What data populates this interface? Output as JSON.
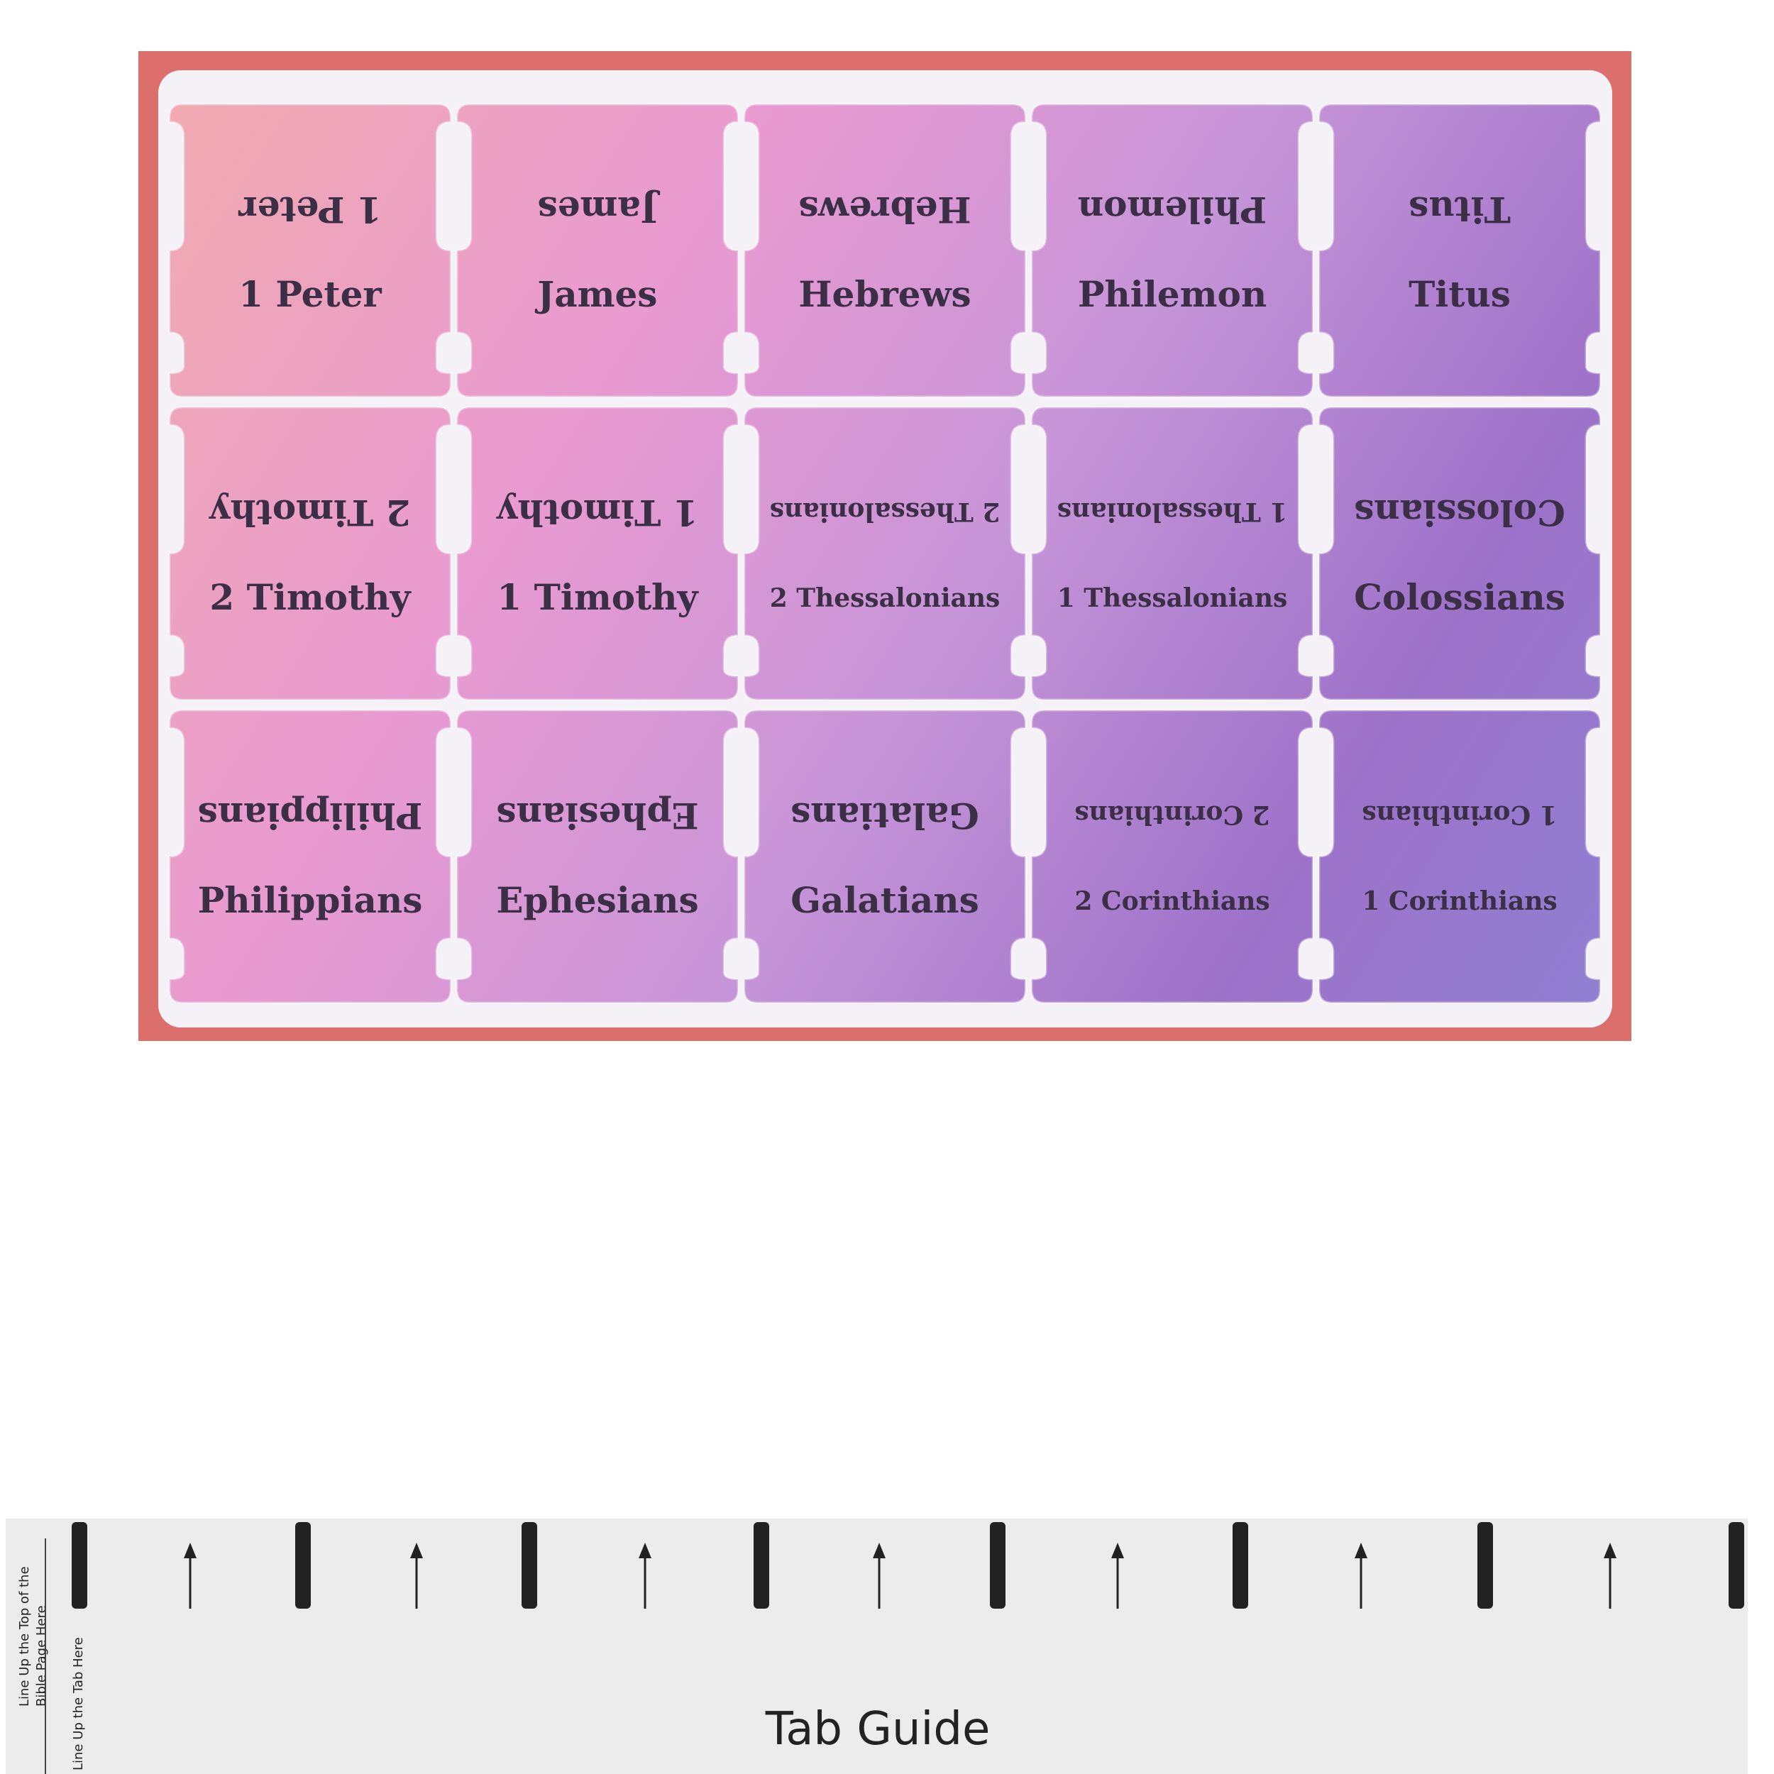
{
  "sheet": {
    "rows": [
      [
        "1 Peter",
        "James",
        "Hebrews",
        "Philemon",
        "Titus"
      ],
      [
        "2 Timothy",
        "1 Timothy",
        "2 Thessalonians",
        "1 Thessalonians",
        "Colossians"
      ],
      [
        "Philippians",
        "Ephesians",
        "Galatians",
        "2 Corinthians",
        "1 Corinthians"
      ]
    ]
  },
  "guide": {
    "title": "Tab Guide",
    "page_note_lines": [
      "Line Up the Top of the",
      "Bible Page Here"
    ],
    "tab_note": "Line Up the Tab Here"
  }
}
